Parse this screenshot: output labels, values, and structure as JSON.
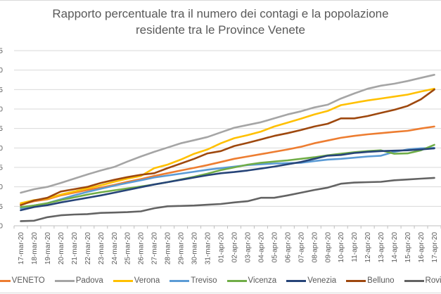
{
  "chart_data": {
    "type": "line",
    "title": "Rapporto percentuale tra il numero dei contagi e la popolazione residente tra le Province Venete",
    "title_lines": [
      "Rapporto percentuale tra il numero dei contagi e la popolazione",
      "residente tra le Province Venete"
    ],
    "xlabel": "",
    "ylabel": "",
    "ylim": [
      0,
      0.45
    ],
    "yticks": [
      0,
      0.05,
      0.1,
      0.15,
      0.2,
      0.25,
      0.3,
      0.35,
      0.4,
      0.45
    ],
    "grid": true,
    "legend_position": "bottom",
    "x": [
      "17-mar-20",
      "18-mar-20",
      "19-mar-20",
      "20-mar-20",
      "21-mar-20",
      "22-mar-20",
      "23-mar-20",
      "24-mar-20",
      "25-mar-20",
      "26-mar-20",
      "27-mar-20",
      "28-mar-20",
      "29-mar-20",
      "30-mar-20",
      "31-mar-20",
      "01-apr-20",
      "02-apr-20",
      "03-apr-20",
      "04-apr-20",
      "05-apr-20",
      "06-apr-20",
      "07-apr-20",
      "08-apr-20",
      "09-apr-20",
      "10-apr-20",
      "11-apr-20",
      "12-apr-20",
      "13-apr-20",
      "14-apr-20",
      "15-apr-20",
      "16-apr-20",
      "17-apr-20"
    ],
    "series": [
      {
        "name": "VENETO",
        "color": "#ED7D31",
        "values": [
          0.055,
          0.063,
          0.068,
          0.078,
          0.085,
          0.092,
          0.098,
          0.105,
          0.113,
          0.12,
          0.128,
          0.135,
          0.142,
          0.149,
          0.156,
          0.164,
          0.172,
          0.178,
          0.184,
          0.19,
          0.196,
          0.203,
          0.212,
          0.219,
          0.226,
          0.231,
          0.235,
          0.238,
          0.241,
          0.244,
          0.25,
          0.255
        ]
      },
      {
        "name": "Padova",
        "color": "#A5A5A5",
        "values": [
          0.085,
          0.094,
          0.1,
          0.11,
          0.121,
          0.132,
          0.142,
          0.151,
          0.165,
          0.178,
          0.19,
          0.201,
          0.212,
          0.22,
          0.228,
          0.24,
          0.252,
          0.259,
          0.266,
          0.276,
          0.286,
          0.294,
          0.304,
          0.311,
          0.327,
          0.34,
          0.352,
          0.36,
          0.365,
          0.372,
          0.38,
          0.388
        ]
      },
      {
        "name": "Verona",
        "color": "#FFC000",
        "values": [
          0.058,
          0.066,
          0.07,
          0.08,
          0.088,
          0.096,
          0.104,
          0.113,
          0.121,
          0.128,
          0.148,
          0.157,
          0.17,
          0.185,
          0.196,
          0.212,
          0.225,
          0.233,
          0.242,
          0.255,
          0.265,
          0.275,
          0.286,
          0.295,
          0.31,
          0.316,
          0.322,
          0.327,
          0.332,
          0.337,
          0.345,
          0.352
        ]
      },
      {
        "name": "Treviso",
        "color": "#5B9BD5",
        "values": [
          0.045,
          0.052,
          0.058,
          0.068,
          0.078,
          0.087,
          0.095,
          0.103,
          0.11,
          0.117,
          0.124,
          0.129,
          0.134,
          0.139,
          0.144,
          0.148,
          0.152,
          0.156,
          0.158,
          0.16,
          0.161,
          0.162,
          0.166,
          0.17,
          0.172,
          0.175,
          0.178,
          0.18,
          0.19,
          0.196,
          0.199,
          0.2
        ]
      },
      {
        "name": "Vicenza",
        "color": "#70AD47",
        "values": [
          0.048,
          0.052,
          0.058,
          0.066,
          0.073,
          0.08,
          0.086,
          0.091,
          0.096,
          0.101,
          0.106,
          0.112,
          0.119,
          0.126,
          0.134,
          0.143,
          0.15,
          0.157,
          0.162,
          0.165,
          0.168,
          0.172,
          0.176,
          0.181,
          0.185,
          0.189,
          0.192,
          0.194,
          0.185,
          0.186,
          0.194,
          0.208
        ]
      },
      {
        "name": "Venezia",
        "color": "#264478",
        "values": [
          0.04,
          0.048,
          0.053,
          0.06,
          0.066,
          0.072,
          0.078,
          0.085,
          0.092,
          0.099,
          0.106,
          0.112,
          0.118,
          0.124,
          0.13,
          0.135,
          0.138,
          0.142,
          0.147,
          0.152,
          0.158,
          0.164,
          0.172,
          0.18,
          0.182,
          0.187,
          0.19,
          0.192,
          0.193,
          0.194,
          0.196,
          0.199
        ]
      },
      {
        "name": "Belluno",
        "color": "#9E480E",
        "values": [
          0.053,
          0.065,
          0.072,
          0.088,
          0.094,
          0.1,
          0.11,
          0.118,
          0.125,
          0.131,
          0.135,
          0.148,
          0.16,
          0.172,
          0.186,
          0.192,
          0.205,
          0.213,
          0.222,
          0.231,
          0.238,
          0.246,
          0.255,
          0.262,
          0.276,
          0.276,
          0.282,
          0.29,
          0.298,
          0.308,
          0.325,
          0.35
        ]
      },
      {
        "name": "Rovigo",
        "color": "#636363",
        "values": [
          0.012,
          0.013,
          0.022,
          0.027,
          0.029,
          0.03,
          0.033,
          0.034,
          0.035,
          0.037,
          0.045,
          0.05,
          0.051,
          0.052,
          0.054,
          0.056,
          0.06,
          0.063,
          0.072,
          0.072,
          0.078,
          0.085,
          0.092,
          0.098,
          0.108,
          0.111,
          0.112,
          0.113,
          0.117,
          0.119,
          0.121,
          0.123
        ]
      }
    ]
  }
}
